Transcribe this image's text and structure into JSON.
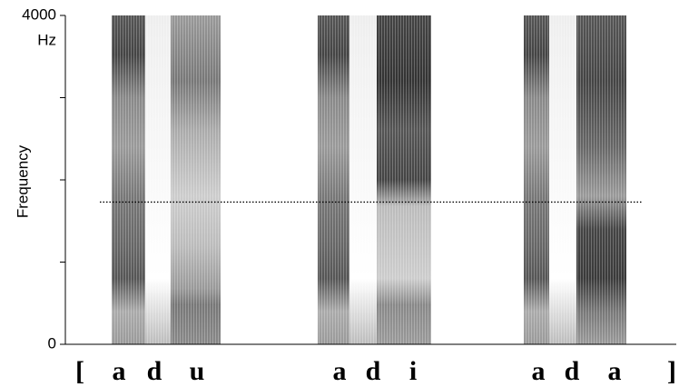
{
  "chart_data": {
    "type": "spectrogram",
    "ylabel": "Frequency",
    "yunit": "Hz",
    "ylim": [
      0,
      4000
    ],
    "yticks": [
      0,
      4000
    ],
    "minor_yticks": [
      1000,
      2000,
      3000
    ],
    "reference_line": 1730,
    "segments": [
      "[",
      "a",
      "d",
      "u",
      "a",
      "d",
      "i",
      "a",
      "d",
      "a",
      "]"
    ]
  }
}
